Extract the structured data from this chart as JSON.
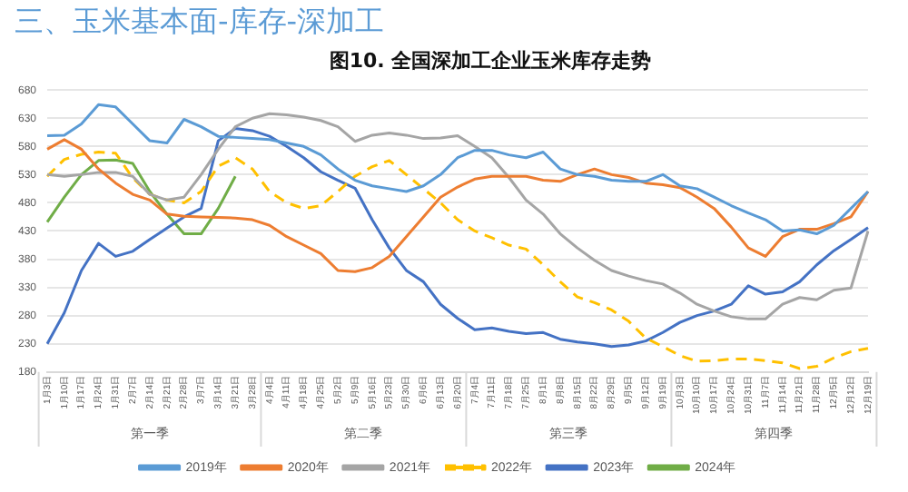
{
  "chart_data": {
    "type": "line",
    "title": "三、玉米基本面-库存-深加工",
    "subtitle": "图10. 全国深加工企业玉米库存走势",
    "categories": [
      "1月3日",
      "1月10日",
      "1月17日",
      "1月24日",
      "1月31日",
      "2月7日",
      "2月14日",
      "2月21日",
      "2月28日",
      "3月7日",
      "3月14日",
      "3月21日",
      "3月28日",
      "4月4日",
      "4月11日",
      "4月18日",
      "4月25日",
      "5月2日",
      "5月9日",
      "5月16日",
      "5月23日",
      "5月30日",
      "6月6日",
      "6月13日",
      "6月20日",
      "7月4日",
      "7月11日",
      "7月18日",
      "7月25日",
      "8月1日",
      "8月8日",
      "8月15日",
      "8月22日",
      "8月29日",
      "9月5日",
      "9月12日",
      "9月19日",
      "10月3日",
      "10月10日",
      "10月17日",
      "10月24日",
      "10月31日",
      "11月7日",
      "11月14日",
      "11月21日",
      "11月28日",
      "12月5日",
      "12月12日",
      "12月19日"
    ],
    "annotations": [
      "第一季",
      "第二季",
      "第三季",
      "第四季"
    ],
    "ylim": [
      180,
      680
    ],
    "yticks": [
      180,
      230,
      280,
      330,
      380,
      430,
      480,
      530,
      580,
      630,
      680
    ],
    "grid": "y",
    "legend": "bottom",
    "marker": "none",
    "series": [
      {
        "name": "2019年",
        "color": "#5b9bd5",
        "line_style": "solid",
        "values": [
          599,
          600,
          620,
          654,
          650,
          620,
          590,
          586,
          628,
          615,
          598,
          596,
          594,
          592,
          586,
          580,
          565,
          540,
          520,
          510,
          505,
          500,
          510,
          530,
          560,
          573,
          573,
          565,
          560,
          570,
          540,
          530,
          527,
          520,
          518,
          518,
          530,
          510,
          505,
          490,
          475,
          462,
          450,
          430,
          432,
          425,
          440,
          470,
          500
        ]
      },
      {
        "name": "2020年",
        "color": "#ed7d31",
        "line_style": "solid",
        "values": [
          575,
          592,
          575,
          540,
          515,
          495,
          485,
          460,
          456,
          455,
          454,
          453,
          450,
          440,
          420,
          405,
          390,
          360,
          358,
          365,
          385,
          420,
          455,
          490,
          508,
          522,
          527,
          527,
          527,
          520,
          518,
          530,
          540,
          530,
          525,
          515,
          512,
          507,
          490,
          470,
          437,
          400,
          385,
          420,
          433,
          433,
          443,
          455,
          500
        ]
      },
      {
        "name": "2021年",
        "color": "#a5a5a5",
        "line_style": "solid",
        "values": [
          530,
          527,
          530,
          534,
          534,
          527,
          495,
          485,
          490,
          530,
          575,
          615,
          630,
          638,
          636,
          632,
          626,
          615,
          589,
          600,
          604,
          600,
          594,
          595,
          599,
          580,
          560,
          525,
          485,
          460,
          425,
          400,
          378,
          360,
          350,
          342,
          336,
          320,
          300,
          288,
          278,
          274,
          274,
          300,
          312,
          308,
          325,
          329,
          430
        ]
      },
      {
        "name": "2022年",
        "color": "#ffc000",
        "line_style": "dashed",
        "values": [
          527,
          557,
          566,
          570,
          568,
          524,
          495,
          485,
          480,
          500,
          545,
          560,
          540,
          500,
          480,
          470,
          475,
          500,
          527,
          544,
          555,
          530,
          505,
          480,
          450,
          430,
          418,
          405,
          398,
          370,
          340,
          313,
          303,
          290,
          270,
          240,
          225,
          209,
          199,
          200,
          203,
          203,
          200,
          196,
          186,
          190,
          205,
          216,
          222
        ]
      },
      {
        "name": "2023年",
        "color": "#4472c4",
        "line_style": "solid",
        "values": [
          230,
          285,
          360,
          408,
          385,
          394,
          415,
          435,
          455,
          470,
          590,
          612,
          608,
          598,
          580,
          560,
          535,
          520,
          506,
          450,
          400,
          360,
          340,
          300,
          275,
          255,
          258,
          252,
          248,
          250,
          238,
          233,
          230,
          225,
          228,
          235,
          250,
          268,
          280,
          288,
          300,
          333,
          318,
          322,
          340,
          370,
          395,
          415,
          436
        ]
      },
      {
        "name": "2024年",
        "color": "#70ad47",
        "line_style": "solid",
        "values": [
          446,
          490,
          530,
          555,
          556,
          550,
          500,
          460,
          425,
          425,
          470,
          527,
          null,
          null,
          null,
          null,
          null,
          null,
          null,
          null,
          null,
          null,
          null,
          null,
          null,
          null,
          null,
          null,
          null,
          null,
          null,
          null,
          null,
          null,
          null,
          null,
          null,
          null,
          null,
          null,
          null,
          null,
          null,
          null,
          null,
          null,
          null,
          null,
          null
        ]
      }
    ]
  }
}
